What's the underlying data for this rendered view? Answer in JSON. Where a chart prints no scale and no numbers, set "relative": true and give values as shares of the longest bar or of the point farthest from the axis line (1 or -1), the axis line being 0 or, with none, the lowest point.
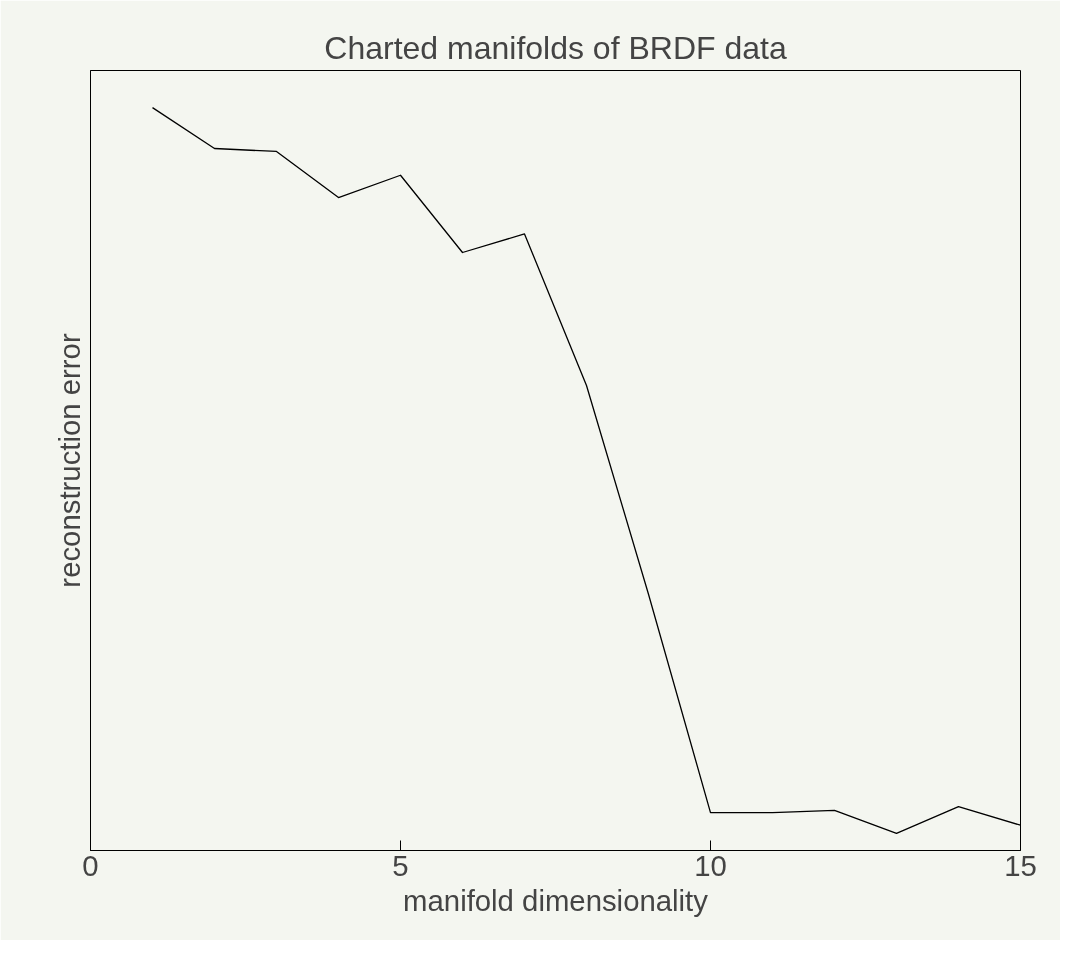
{
  "chart_data": {
    "type": "line",
    "title": "Charted manifolds of BRDF data",
    "xlabel": "manifold dimensionality",
    "ylabel": "reconstruction error",
    "relative": true,
    "x": [
      1,
      2,
      3,
      4,
      5,
      6,
      7,
      8,
      9,
      10,
      11,
      12,
      13,
      14,
      15
    ],
    "series": [
      {
        "color": "#000000",
        "values": [
          1,
          0.945,
          0.941,
          0.879,
          0.909,
          0.805,
          0.83,
          0.626,
          0.345,
          0.051,
          0.051,
          0.054,
          0.023,
          0.059,
          0.034
        ]
      }
    ],
    "xlim": [
      0,
      15
    ],
    "xticks": [
      0,
      5,
      10,
      15
    ],
    "grid": false,
    "marker": "none",
    "line_style": "solid"
  }
}
